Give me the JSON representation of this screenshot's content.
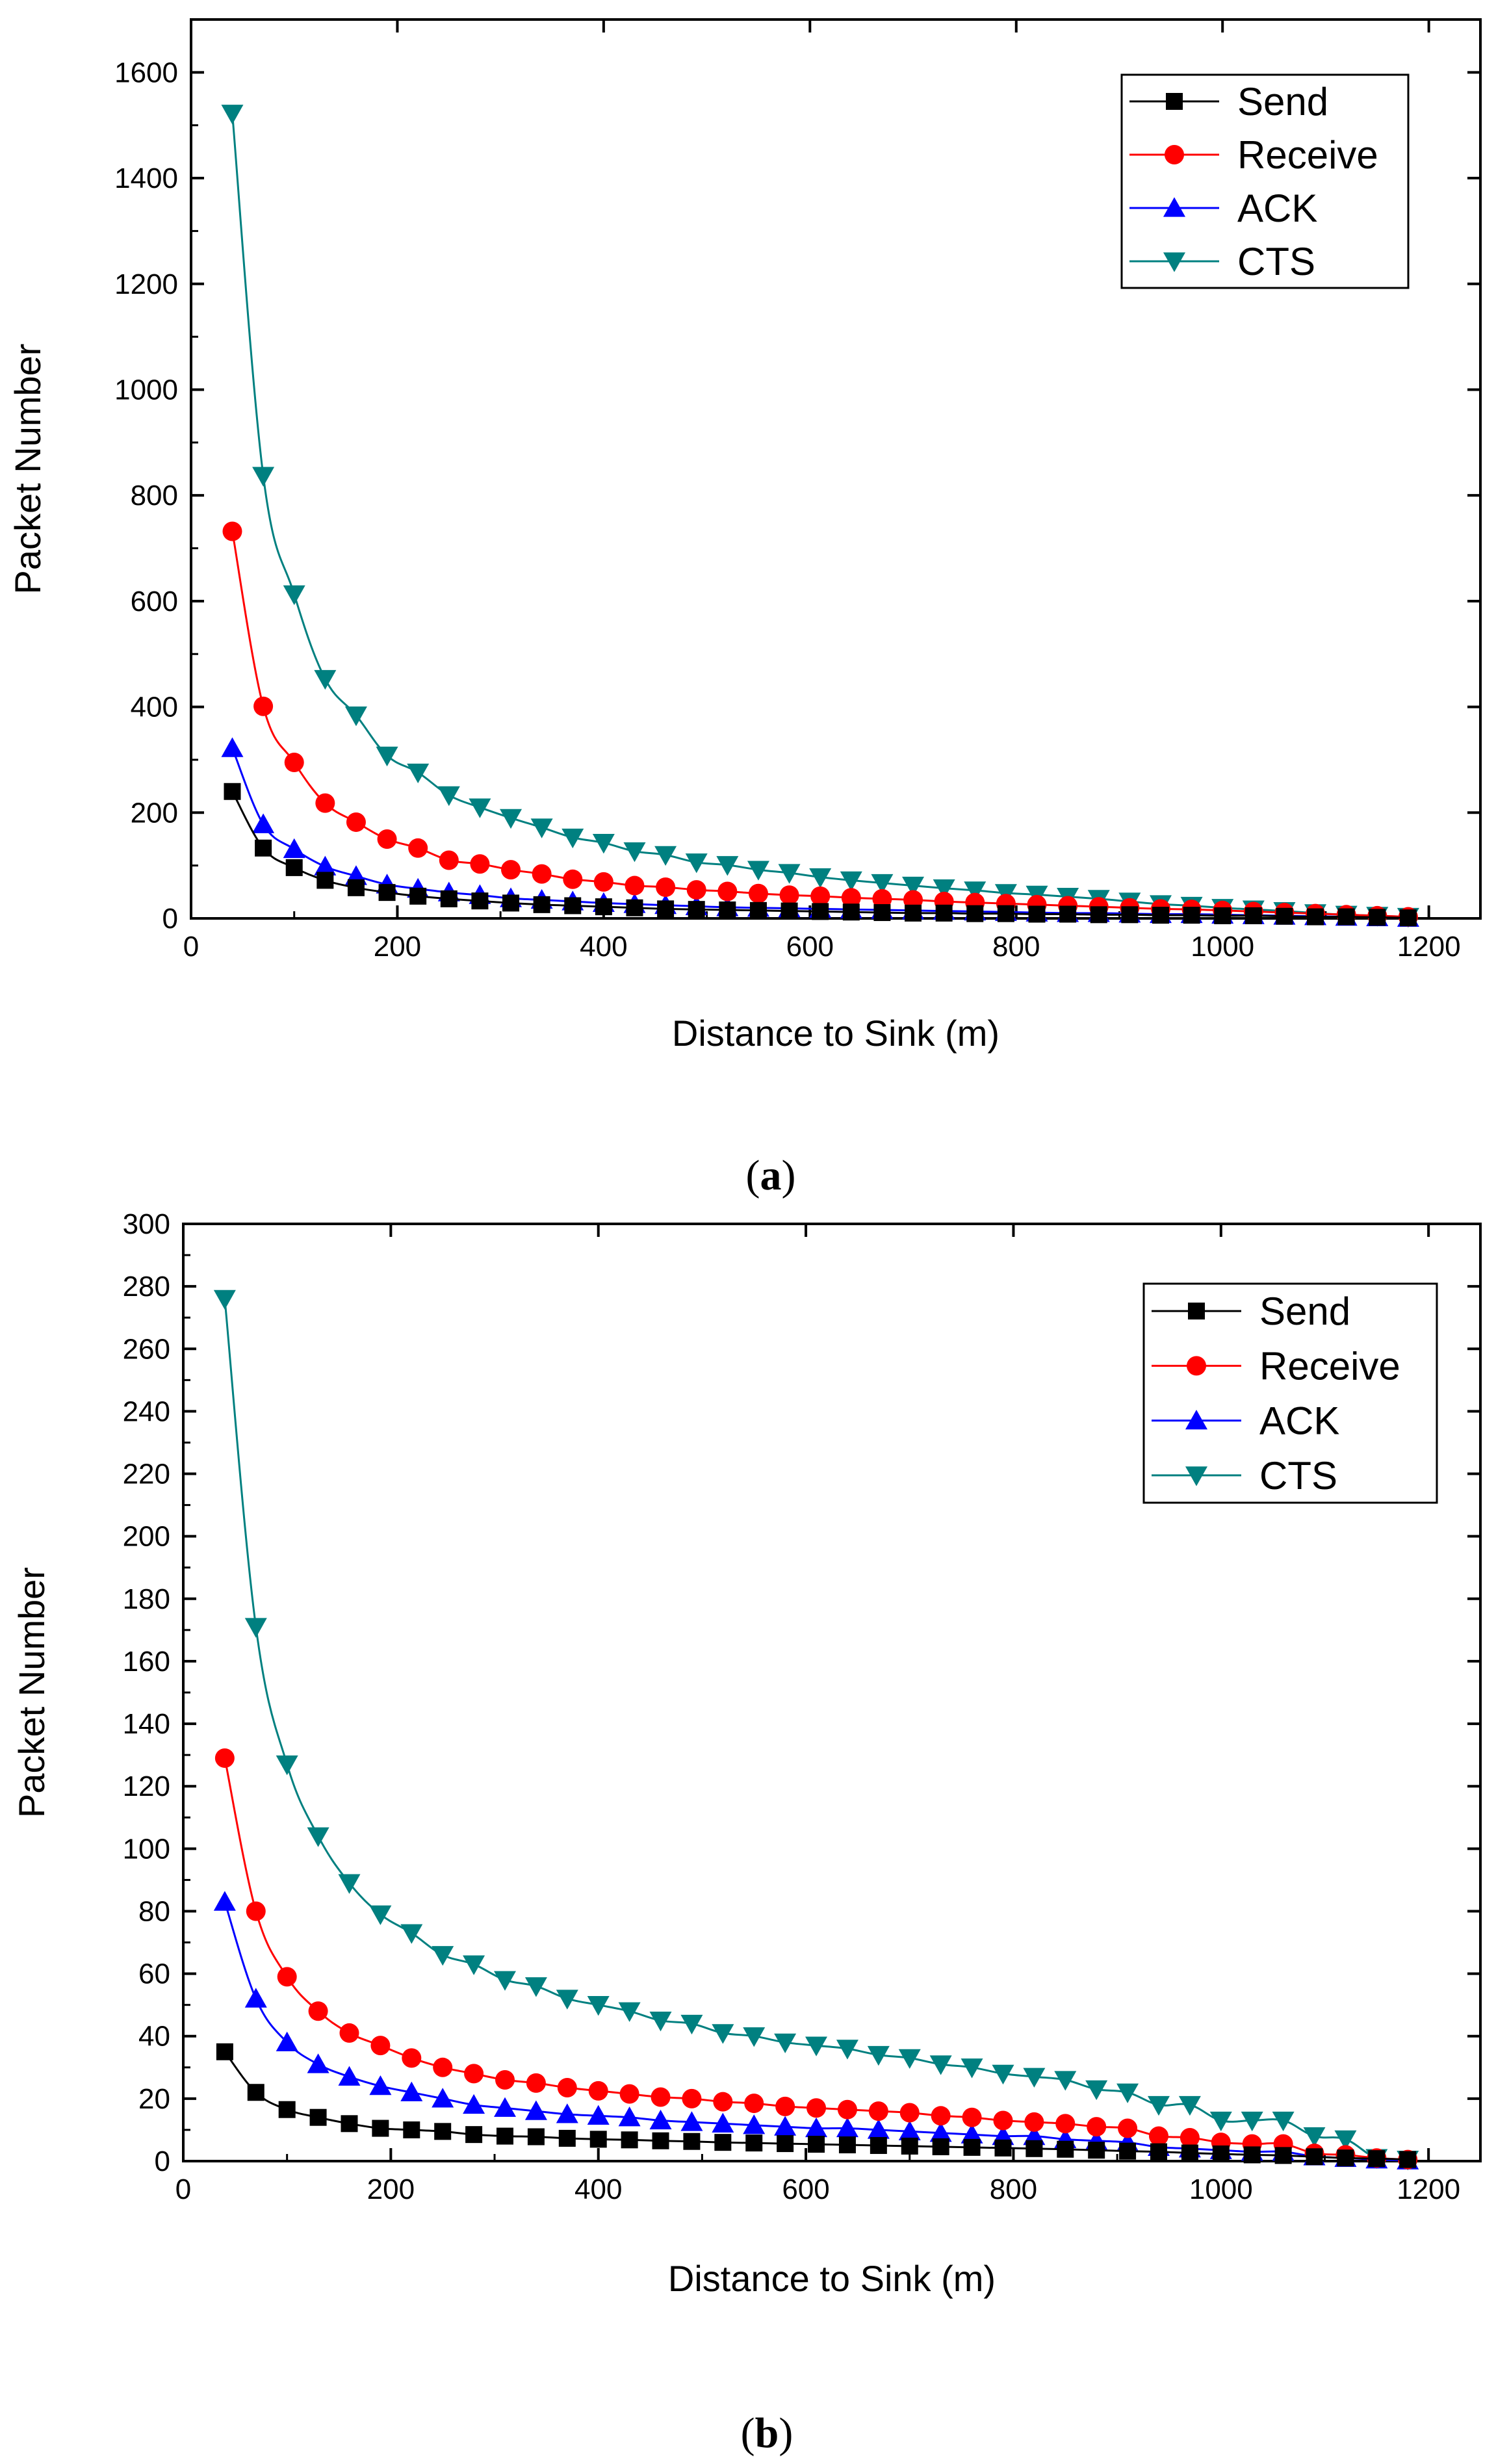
{
  "chart_data": [
    {
      "type": "line",
      "panel": "a",
      "caption_open": "(",
      "caption_letter": "a",
      "caption_close": ")",
      "xlabel": "Distance to Sink (m)",
      "ylabel": "Packet Number",
      "xlim": [
        0,
        1250
      ],
      "ylim": [
        0,
        1700
      ],
      "xticks": [
        0,
        200,
        400,
        600,
        800,
        1000,
        1200
      ],
      "yticks": [
        0,
        200,
        400,
        600,
        800,
        1000,
        1200,
        1400,
        1600
      ],
      "legend_position": "top-right",
      "x": [
        40,
        70,
        100,
        130,
        160,
        190,
        220,
        250,
        280,
        310,
        340,
        370,
        400,
        430,
        460,
        490,
        520,
        550,
        580,
        610,
        640,
        670,
        700,
        730,
        760,
        790,
        820,
        850,
        880,
        910,
        940,
        970,
        1000,
        1030,
        1060,
        1090,
        1120,
        1150,
        1180
      ],
      "series": [
        {
          "name": "Send",
          "color": "#000000",
          "marker": "square",
          "values": [
            240,
            133,
            96,
            72,
            58,
            49,
            42,
            37,
            33,
            29,
            26,
            24,
            22,
            20,
            18,
            17,
            16,
            15,
            14,
            13,
            12,
            11,
            10,
            10,
            9,
            9,
            8,
            8,
            7,
            7,
            6,
            6,
            5,
            5,
            4,
            3,
            3,
            2,
            1
          ]
        },
        {
          "name": "Receive",
          "color": "#ff0000",
          "marker": "circle",
          "values": [
            732,
            401,
            295,
            218,
            182,
            150,
            133,
            110,
            103,
            92,
            84,
            74,
            69,
            62,
            59,
            54,
            51,
            47,
            44,
            42,
            39,
            37,
            35,
            32,
            30,
            28,
            26,
            24,
            22,
            20,
            18,
            17,
            15,
            13,
            11,
            9,
            7,
            5,
            3
          ]
        },
        {
          "name": "ACK",
          "color": "#0000ff",
          "marker": "triangle-up",
          "values": [
            322,
            178,
            131,
            98,
            80,
            64,
            56,
            49,
            44,
            38,
            35,
            32,
            29,
            27,
            25,
            23,
            21,
            20,
            19,
            18,
            17,
            16,
            15,
            14,
            13,
            12,
            11,
            10,
            10,
            9,
            8,
            8,
            7,
            6,
            5,
            4,
            3,
            2,
            1
          ]
        },
        {
          "name": "CTS",
          "color": "#008080",
          "marker": "triangle-down",
          "values": [
            1522,
            837,
            613,
            453,
            384,
            308,
            276,
            233,
            210,
            190,
            172,
            153,
            143,
            127,
            120,
            106,
            101,
            92,
            86,
            78,
            72,
            67,
            62,
            57,
            53,
            48,
            45,
            41,
            37,
            32,
            27,
            24,
            20,
            17,
            14,
            10,
            7,
            5,
            3
          ]
        }
      ]
    },
    {
      "type": "line",
      "panel": "b",
      "caption_open": "(",
      "caption_letter": "b",
      "caption_close": ")",
      "xlabel": "Distance to Sink (m)",
      "ylabel": "Packet Number",
      "xlim": [
        0,
        1250
      ],
      "ylim": [
        0,
        300
      ],
      "xticks": [
        0,
        200,
        400,
        600,
        800,
        1000,
        1200
      ],
      "yticks": [
        0,
        20,
        40,
        60,
        80,
        100,
        120,
        140,
        160,
        180,
        200,
        220,
        240,
        260,
        280,
        300
      ],
      "legend_position": "top-right",
      "x": [
        40,
        70,
        100,
        130,
        160,
        190,
        220,
        250,
        280,
        310,
        340,
        370,
        400,
        430,
        460,
        490,
        520,
        550,
        580,
        610,
        640,
        670,
        700,
        730,
        760,
        790,
        820,
        850,
        880,
        910,
        940,
        970,
        1000,
        1030,
        1060,
        1090,
        1120,
        1150,
        1180
      ],
      "series": [
        {
          "name": "Send",
          "color": "#000000",
          "marker": "square",
          "values": [
            35,
            22,
            16.5,
            14,
            12,
            10.5,
            10,
            9.5,
            8.5,
            8,
            7.8,
            7.3,
            7,
            6.8,
            6.5,
            6.3,
            6,
            5.8,
            5.6,
            5.4,
            5.2,
            5,
            4.8,
            4.6,
            4.4,
            4.2,
            4,
            3.8,
            3.5,
            3.2,
            3,
            2.6,
            2.3,
            2,
            1.8,
            1.4,
            1,
            0.8,
            0.5
          ]
        },
        {
          "name": "Receive",
          "color": "#ff0000",
          "marker": "circle",
          "values": [
            129,
            80,
            59,
            48,
            41,
            37,
            33,
            30,
            28,
            26,
            25,
            23.5,
            22.5,
            21.5,
            20.5,
            20,
            19,
            18.5,
            17.5,
            17,
            16.5,
            16,
            15.5,
            14.5,
            14,
            13,
            12.5,
            12,
            11,
            10.5,
            8,
            7.5,
            6,
            5.5,
            5.5,
            2.5,
            2,
            1,
            0.5
          ]
        },
        {
          "name": "ACK",
          "color": "#0000ff",
          "marker": "triangle-up",
          "values": [
            83,
            52,
            38,
            31,
            27,
            24,
            22,
            20,
            18,
            17,
            16,
            15,
            14.5,
            14,
            13,
            12.5,
            12,
            11.5,
            11,
            10.5,
            10.5,
            10,
            9.5,
            9,
            8.5,
            8,
            8,
            7,
            6.5,
            6,
            4.5,
            4,
            3.5,
            3,
            3,
            1.5,
            1,
            0.5,
            0.2
          ]
        },
        {
          "name": "CTS",
          "color": "#008080",
          "marker": "triangle-down",
          "values": [
            276,
            171,
            127,
            104,
            89,
            79,
            73,
            66,
            63,
            58,
            56,
            52,
            50,
            48,
            45,
            44,
            41,
            40,
            38,
            37,
            36,
            34,
            33,
            31,
            30,
            28,
            27,
            26,
            23,
            22,
            18,
            18,
            13,
            13,
            13,
            8,
            7,
            1,
            0.5
          ]
        }
      ]
    }
  ]
}
